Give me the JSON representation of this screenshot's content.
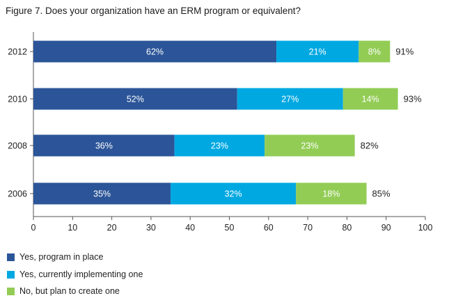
{
  "chart_data": {
    "type": "bar",
    "orientation": "horizontal",
    "stacked": true,
    "title": "Figure 7. Does your organization have an ERM program or equivalent?",
    "categories": [
      "2012",
      "2010",
      "2008",
      "2006"
    ],
    "series": [
      {
        "name": "Yes, program in place",
        "color": "#2b5598",
        "values": [
          62,
          52,
          36,
          35
        ]
      },
      {
        "name": "Yes, currently implementing one",
        "color": "#00a8e2",
        "values": [
          21,
          27,
          23,
          32
        ]
      },
      {
        "name": "No, but plan to create one",
        "color": "#92cc55",
        "values": [
          8,
          14,
          23,
          18
        ]
      }
    ],
    "totals": [
      "91%",
      "93%",
      "82%",
      "85%"
    ],
    "xlim": [
      0,
      100
    ],
    "xticks": [
      0,
      10,
      20,
      30,
      40,
      50,
      60,
      70,
      80,
      90,
      100
    ],
    "grid": false,
    "legend_position": "bottom-left"
  }
}
